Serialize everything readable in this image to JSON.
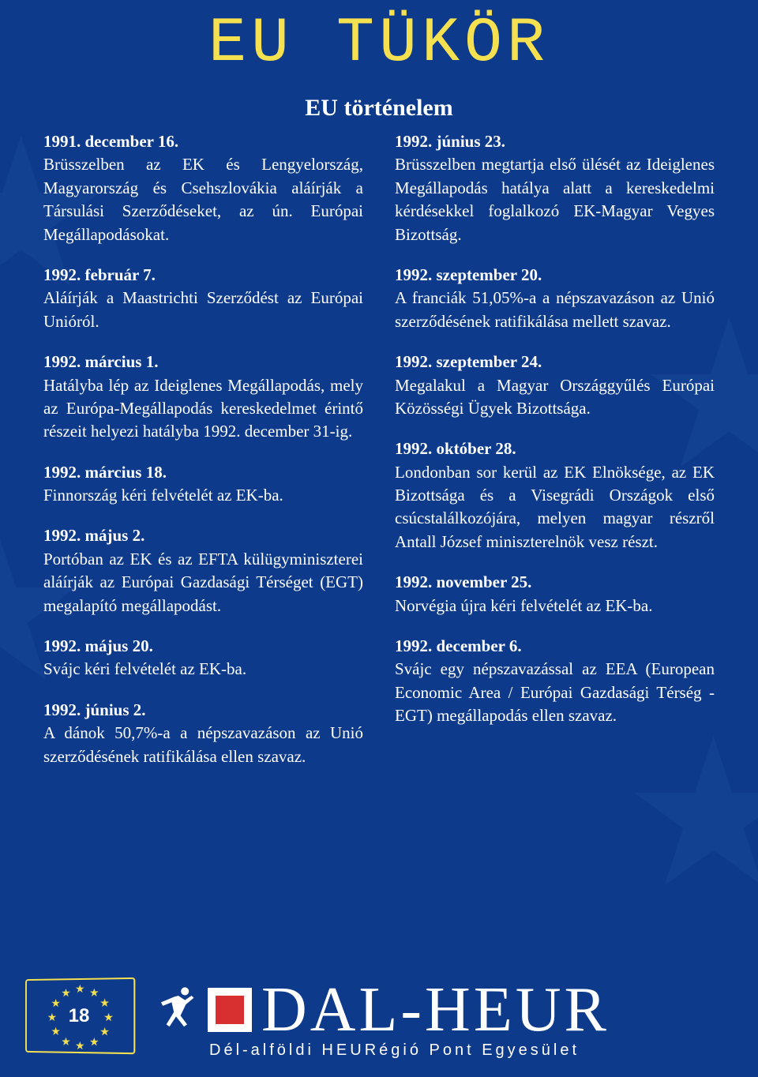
{
  "colors": {
    "background": "#0d3a8a",
    "title": "#f5e050",
    "text": "#ffffff",
    "bg_star": "#2050a0",
    "logo_red": "#d83030"
  },
  "header": {
    "main_title": "EU TÜKÖR",
    "section_title": "EU történelem"
  },
  "left_entries": [
    {
      "date": "1991. december 16.",
      "body": "Brüsszelben az EK és Lengyelország, Magyarország és Csehszlovákia aláírják a Társulási Szerződéseket, az ún. Európai Megállapodásokat."
    },
    {
      "date": "1992. február 7.",
      "body": "Aláírják a Maastrichti Szerződést az Európai Unióról."
    },
    {
      "date": "1992. március 1.",
      "body": "Hatályba lép az Ideiglenes Megállapodás, mely az Európa-Megállapodás kereskedelmet érintő részeit helyezi hatályba 1992. december 31-ig."
    },
    {
      "date": "1992. március 18.",
      "body": "Finnország kéri felvételét az EK-ba."
    },
    {
      "date": "1992. május 2.",
      "body": "Portóban az EK és az EFTA külügyminiszterei aláírják az Európai Gazdasági Térséget (EGT) megalapító megállapodást."
    },
    {
      "date": "1992. május 20.",
      "body": "Svájc kéri felvételét az EK-ba."
    },
    {
      "date": "1992. június 2.",
      "body": "A dánok 50,7%-a a népszavazáson az Unió szerződésének ratifikálása ellen szavaz."
    }
  ],
  "right_entries": [
    {
      "date": "1992. június 23.",
      "body": "Brüsszelben megtartja első ülését az Ideiglenes Megállapodás hatálya alatt a kereskedelmi kérdésekkel foglalkozó EK-Magyar Vegyes Bizottság."
    },
    {
      "date": "1992. szeptember 20.",
      "body": "A franciák 51,05%-a a népszavazáson az Unió szerződésének ratifikálása mellett szavaz."
    },
    {
      "date": "1992. szeptember 24.",
      "body": "Megalakul a Magyar Országgyűlés Európai Közösségi Ügyek Bizottsága."
    },
    {
      "date": "1992. október 28.",
      "body": "Londonban sor kerül az EK Elnöksége, az EK Bizottsága és a Visegrádi Országok első csúcstalálkozójára, melyen magyar részről Antall József miniszterelnök vesz részt."
    },
    {
      "date": "1992. november 25.",
      "body": "Norvégia újra kéri felvételét az EK-ba."
    },
    {
      "date": "1992. december 6.",
      "body": "Svájc egy népszavazással az EEA (European Economic Area / Európai Gazdasági Térség - EGT) megállapodás ellen szavaz."
    }
  ],
  "footer": {
    "page_number": "18",
    "logo_text": "DAL-HEUR",
    "logo_sub": "Dél-alföldi HEURégió Pont Egyesület"
  },
  "typography": {
    "main_title_fontsize": 80,
    "section_title_fontsize": 30,
    "body_fontsize": 21,
    "logo_fontsize": 80,
    "logo_sub_fontsize": 20
  }
}
